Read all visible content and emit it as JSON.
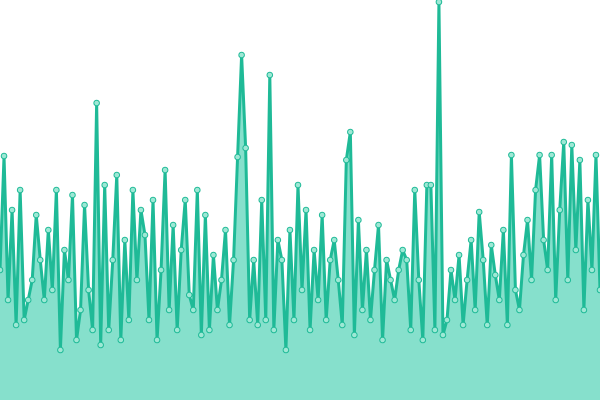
{
  "chart_data": {
    "type": "area-line",
    "values": [
      130,
      244,
      100,
      190,
      75,
      210,
      80,
      100,
      120,
      185,
      140,
      100,
      170,
      110,
      210,
      50,
      150,
      120,
      205,
      60,
      90,
      195,
      110,
      70,
      297,
      55,
      215,
      70,
      140,
      225,
      60,
      160,
      80,
      210,
      120,
      190,
      165,
      80,
      200,
      60,
      130,
      230,
      90,
      175,
      70,
      150,
      200,
      105,
      90,
      210,
      65,
      185,
      70,
      145,
      90,
      120,
      170,
      75,
      140,
      243,
      345,
      252,
      80,
      140,
      75,
      200,
      80,
      325,
      70,
      160,
      140,
      50,
      170,
      80,
      215,
      110,
      190,
      70,
      150,
      100,
      185,
      80,
      140,
      160,
      120,
      75,
      240,
      268,
      65,
      180,
      90,
      150,
      80,
      130,
      175,
      60,
      140,
      120,
      100,
      130,
      150,
      140,
      70,
      210,
      120,
      60,
      215,
      215,
      70,
      398,
      65,
      80,
      130,
      100,
      145,
      75,
      120,
      160,
      90,
      188,
      140,
      75,
      155,
      125,
      100,
      170,
      75,
      245,
      110,
      90,
      145,
      180,
      120,
      210,
      245,
      160,
      130,
      245,
      100,
      190,
      258,
      120,
      255,
      150,
      240,
      90,
      200,
      130,
      245,
      110
    ],
    "ylim": [
      0,
      400
    ],
    "color": "#1fba97",
    "area_color": "#86e0cc",
    "marker_color": "#9ee8d5"
  }
}
